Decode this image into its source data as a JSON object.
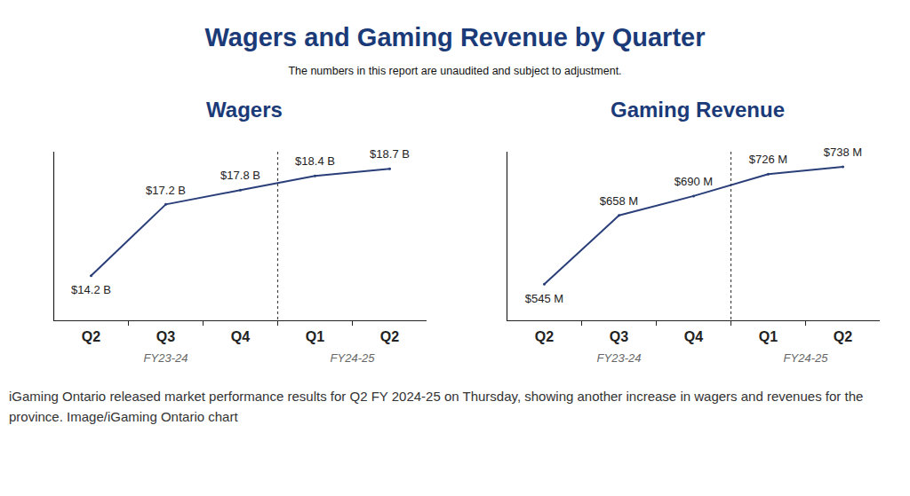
{
  "title": "Wagers and Gaming Revenue by Quarter",
  "subtitle": "The numbers in this report are unaudited and subject to adjustment.",
  "caption": "iGaming Ontario released market performance results for Q2 FY 2024-25 on Thursday, showing another increase in wagers and revenues for the province. Image/iGaming Ontario chart",
  "chart_data": [
    {
      "type": "line",
      "title": "Wagers",
      "categories": [
        "Q2",
        "Q3",
        "Q4",
        "Q1",
        "Q2"
      ],
      "x_groups": [
        {
          "label": "FY23-24",
          "count": 3
        },
        {
          "label": "FY24-25",
          "count": 2
        }
      ],
      "values": [
        14.2,
        17.2,
        17.8,
        18.4,
        18.7
      ],
      "value_labels": [
        "$14.2 B",
        "$17.2 B",
        "$17.8 B",
        "$18.4 B",
        "$18.7 B"
      ],
      "color": "#2a3f7a",
      "ylim": [
        12.3,
        19.4
      ],
      "yticks": [],
      "grid": false,
      "data_labels": true,
      "tick_labels": "x"
    },
    {
      "type": "line",
      "title": "Gaming Revenue",
      "categories": [
        "Q2",
        "Q3",
        "Q4",
        "Q1",
        "Q2"
      ],
      "x_groups": [
        {
          "label": "FY23-24",
          "count": 3
        },
        {
          "label": "FY24-25",
          "count": 2
        }
      ],
      "values": [
        545,
        658,
        690,
        726,
        738
      ],
      "value_labels": [
        "$545 M",
        "$658 M",
        "$690 M",
        "$726 M",
        "$738 M"
      ],
      "color": "#2a3f7a",
      "ylim": [
        485,
        762
      ],
      "yticks": [],
      "grid": false,
      "data_labels": true,
      "tick_labels": "x"
    }
  ]
}
